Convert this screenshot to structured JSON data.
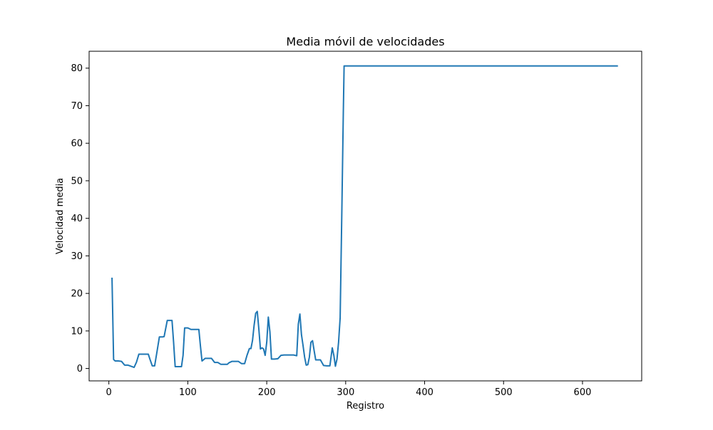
{
  "chart_data": {
    "type": "line",
    "title": "Media móvil de velocidades",
    "xlabel": "Registro",
    "ylabel": "Velocidad media",
    "xlim": [
      -25,
      675
    ],
    "ylim": [
      -3.3,
      84.5
    ],
    "xticks": [
      0,
      100,
      200,
      300,
      400,
      500,
      600
    ],
    "yticks": [
      0,
      10,
      20,
      30,
      40,
      50,
      60,
      70,
      80
    ],
    "grid": false,
    "legend": false,
    "series": [
      {
        "color": "#1f77b4",
        "x": [
          4,
          6,
          8,
          12,
          16,
          20,
          24,
          28,
          32,
          35,
          38,
          42,
          46,
          50,
          52,
          55,
          58,
          61,
          64,
          68,
          70,
          74,
          78,
          80,
          82,
          84,
          88,
          92,
          94,
          96,
          100,
          104,
          108,
          112,
          114,
          116,
          118,
          122,
          126,
          130,
          134,
          138,
          142,
          146,
          150,
          152,
          156,
          160,
          164,
          168,
          172,
          175,
          178,
          180,
          182,
          184,
          186,
          188,
          190,
          192,
          194,
          196,
          198,
          200,
          202,
          204,
          206,
          208,
          210,
          214,
          218,
          222,
          226,
          230,
          234,
          238,
          240,
          242,
          244,
          246,
          248,
          250,
          252,
          254,
          256,
          258,
          260,
          262,
          264,
          268,
          272,
          276,
          280,
          283,
          285,
          287,
          289,
          291,
          293,
          295,
          297,
          298,
          300,
          320,
          400,
          500,
          600,
          644
        ],
        "y": [
          24,
          2.4,
          2,
          2,
          1.9,
          0.9,
          0.9,
          0.6,
          0.3,
          1.7,
          3.8,
          3.8,
          3.8,
          3.8,
          2.5,
          0.7,
          0.7,
          4.5,
          8.4,
          8.4,
          8.5,
          12.8,
          12.8,
          12.8,
          7,
          0.5,
          0.5,
          0.5,
          3.5,
          10.8,
          10.8,
          10.4,
          10.4,
          10.4,
          10.4,
          6,
          2,
          2.7,
          2.7,
          2.7,
          1.6,
          1.6,
          1.1,
          1.1,
          1.1,
          1.5,
          1.9,
          1.9,
          1.9,
          1.3,
          1.3,
          3.5,
          5.3,
          5.3,
          7.5,
          11.5,
          14.7,
          15.2,
          10.5,
          5.2,
          5.5,
          5.2,
          3.5,
          7,
          13.7,
          9.8,
          2.5,
          2.5,
          2.5,
          2.6,
          3.5,
          3.6,
          3.6,
          3.6,
          3.6,
          3.4,
          11.8,
          14.5,
          9,
          6.1,
          3,
          0.9,
          1,
          3,
          7,
          7.4,
          4.8,
          2.3,
          2.3,
          2.3,
          0.8,
          0.7,
          0.7,
          5.5,
          3.5,
          0.6,
          2.5,
          7,
          13.5,
          40,
          68,
          80.6,
          80.6,
          80.6,
          80.6,
          80.6,
          80.6,
          80.6
        ]
      }
    ]
  }
}
